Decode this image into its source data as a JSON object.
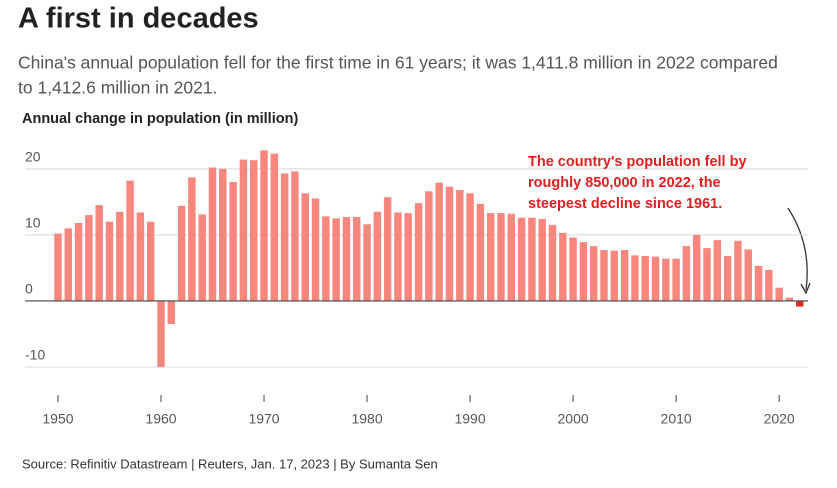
{
  "chart_data": {
    "type": "bar",
    "title": "A first in decades",
    "subtitle": [
      "China's annual population fell for the first time in 61 years; it was 1,411.8 million in 2022 compared",
      "to 1,412.6 million in 2021."
    ],
    "y_label": "Annual change in population (in million)",
    "annotation": [
      "The country's population fell by",
      "roughly 850,000 in 2022, the",
      "steepest decline since 1961."
    ],
    "source": "Source: Refinitiv Datastream | Reuters, Jan. 17, 2023 | By Sumanta Sen",
    "x": [
      1950,
      1951,
      1952,
      1953,
      1954,
      1955,
      1956,
      1957,
      1958,
      1959,
      1960,
      1961,
      1962,
      1963,
      1964,
      1965,
      1966,
      1967,
      1968,
      1969,
      1970,
      1971,
      1972,
      1973,
      1974,
      1975,
      1976,
      1977,
      1978,
      1979,
      1980,
      1981,
      1982,
      1983,
      1984,
      1985,
      1986,
      1987,
      1988,
      1989,
      1990,
      1991,
      1992,
      1993,
      1994,
      1995,
      1996,
      1997,
      1998,
      1999,
      2000,
      2001,
      2002,
      2003,
      2004,
      2005,
      2006,
      2007,
      2008,
      2009,
      2010,
      2011,
      2012,
      2013,
      2014,
      2015,
      2016,
      2017,
      2018,
      2019,
      2020,
      2021,
      2022
    ],
    "values": [
      10.2,
      11.0,
      11.8,
      13.0,
      14.5,
      12.0,
      13.5,
      18.2,
      13.4,
      12.0,
      -10.0,
      -3.5,
      14.4,
      18.7,
      13.1,
      20.2,
      20.0,
      18.0,
      21.4,
      21.3,
      22.8,
      22.3,
      19.3,
      19.6,
      16.3,
      15.5,
      12.8,
      12.5,
      12.7,
      12.7,
      11.6,
      13.5,
      15.7,
      13.4,
      13.3,
      14.8,
      16.6,
      17.9,
      17.3,
      16.8,
      16.3,
      14.7,
      13.3,
      13.3,
      13.2,
      12.6,
      12.6,
      12.4,
      11.5,
      10.3,
      9.6,
      8.9,
      8.3,
      7.7,
      7.6,
      7.7,
      6.9,
      6.8,
      6.7,
      6.4,
      6.4,
      8.3,
      10.0,
      8.0,
      9.2,
      6.8,
      9.1,
      7.8,
      5.3,
      4.7,
      2.0,
      0.5,
      -0.85
    ],
    "color": "#f7867d",
    "highlight_color": "#d92b2b",
    "highlight_x": 2022,
    "annotation_color": "#e0201f",
    "xlim": [
      1946.8,
      2022.8
    ],
    "xticks": [
      1950,
      1960,
      1970,
      1980,
      1990,
      2000,
      2010,
      2020
    ],
    "ylim": [
      -10,
      23
    ],
    "yticks": [
      -10,
      0,
      10,
      20
    ],
    "grid": true
  }
}
